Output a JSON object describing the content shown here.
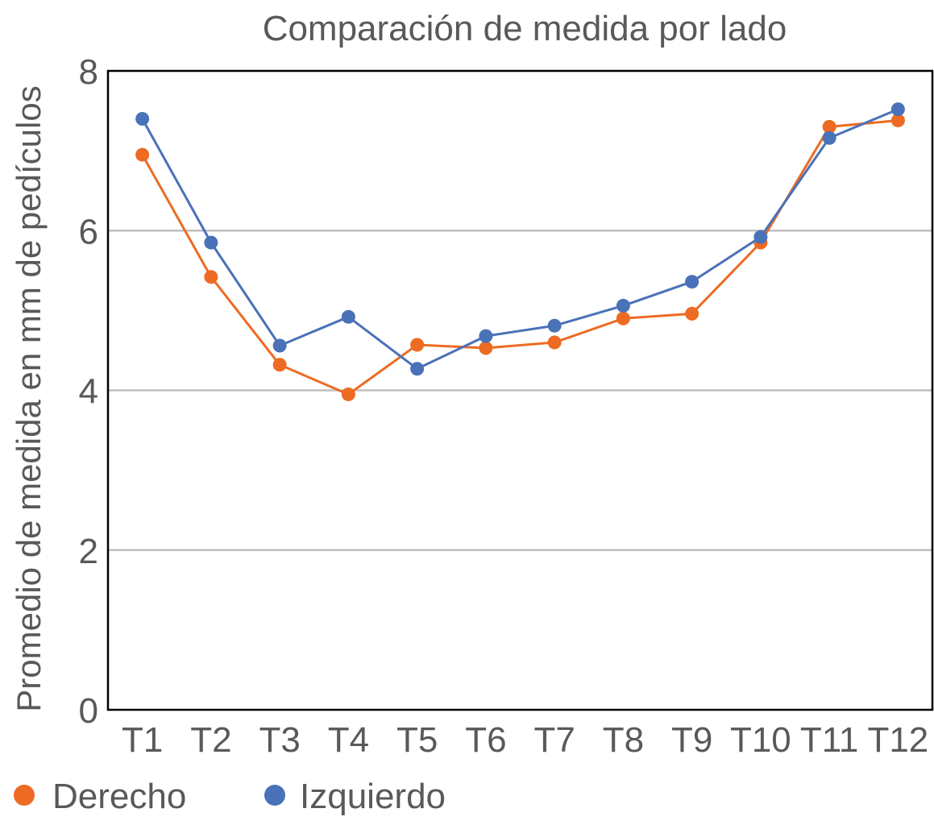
{
  "chart_data": {
    "type": "line",
    "title": "Comparación de medida por lado",
    "xlabel": "",
    "ylabel": "Promedio de medida en mm de pedículos",
    "categories": [
      "T1",
      "T2",
      "T3",
      "T4",
      "T5",
      "T6",
      "T7",
      "T8",
      "T9",
      "T10",
      "T11",
      "T12"
    ],
    "ylim": [
      0,
      8
    ],
    "yticks": [
      "0",
      "2",
      "4",
      "6",
      "8"
    ],
    "grid": true,
    "legend": "bottom-left",
    "series": [
      {
        "name": "Derecho",
        "color": "#ed6b22",
        "values": [
          6.95,
          5.42,
          4.32,
          3.95,
          4.57,
          4.53,
          4.6,
          4.9,
          4.96,
          5.85,
          7.3,
          7.38
        ]
      },
      {
        "name": "Izquierdo",
        "color": "#4a72b8",
        "values": [
          7.4,
          5.85,
          4.56,
          4.92,
          4.27,
          4.68,
          4.81,
          5.06,
          5.36,
          5.92,
          7.16,
          7.52
        ]
      }
    ]
  }
}
